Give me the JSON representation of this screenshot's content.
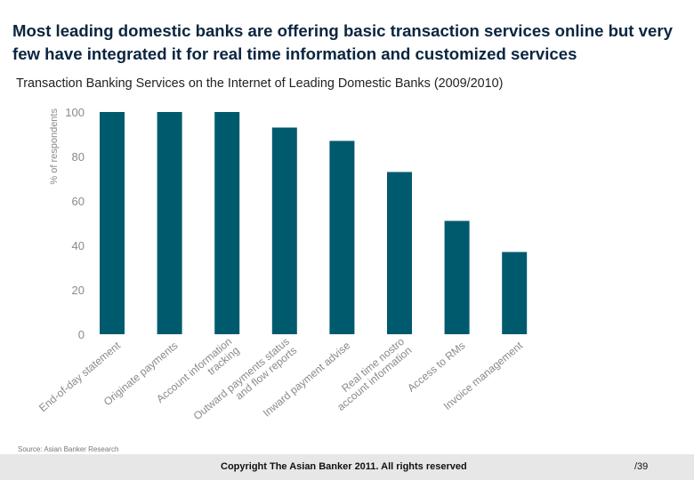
{
  "headline": "Most leading domestic banks are offering basic transaction services online but very few have integrated it for real time information and customized services",
  "colors": {
    "bar": "#005a6e",
    "axis_text": "#8a8a8a",
    "footer_bg": "#e7e7e7"
  },
  "chart_data": {
    "type": "bar",
    "title": "Transaction Banking Services on the Internet of Leading Domestic Banks (2009/2010)",
    "xlabel": "",
    "ylabel": "% of respondents",
    "ylim": [
      0,
      100
    ],
    "yticks": [
      0,
      20,
      40,
      60,
      80,
      100
    ],
    "grid": false,
    "categories": [
      [
        "End-of-day statement"
      ],
      [
        "Originate payments"
      ],
      [
        "Account information",
        "tracking"
      ],
      [
        "Outward payments status",
        "and flow reports"
      ],
      [
        "Inward payment advise"
      ],
      [
        "Real time nostro",
        "account information"
      ],
      [
        "Access to RMs"
      ],
      [
        "Invoice management"
      ]
    ],
    "values": [
      100,
      100,
      100,
      93,
      87,
      73,
      51,
      37
    ]
  },
  "source": "Source: Asian Banker Research",
  "footer": {
    "copyright": "Copyright The Asian Banker 2011. All rights reserved",
    "page": "/39"
  }
}
